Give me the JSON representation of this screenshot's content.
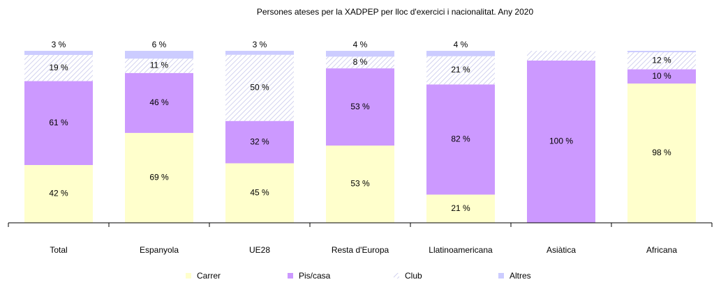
{
  "chart_data": {
    "type": "bar",
    "stacked": "percent",
    "title": "Persones ateses per la XADPEP per lloc d'exercici i nacionalitat. Any 2020",
    "categories": [
      "Total",
      "Espanyola",
      "UE28",
      "Resta d'Europa",
      "Llatinoamericana",
      "Asiàtica",
      "Africana"
    ],
    "series": [
      {
        "name": "Carrer",
        "color": "#ffffcc",
        "values": [
          42,
          69,
          45,
          53,
          21,
          0,
          98
        ],
        "value_labels": [
          "42 %",
          "69 %",
          "45 %",
          "53 %",
          "21 %",
          null,
          "98 %"
        ]
      },
      {
        "name": "Pis/casa",
        "color": "#cc99ff",
        "values": [
          61,
          46,
          32,
          53,
          82,
          100,
          10
        ],
        "value_labels": [
          "61 %",
          "46 %",
          "32 %",
          "53 %",
          "82 %",
          "100 %",
          "10 %"
        ]
      },
      {
        "name": "Club",
        "color": "#c4c4ea",
        "pattern": "hatch",
        "values": [
          19,
          11,
          50,
          8,
          21,
          6,
          12
        ],
        "value_labels": [
          "19 %",
          "11 %",
          "50 %",
          "8 %",
          "21 %",
          null,
          "12 %"
        ]
      },
      {
        "name": "Altres",
        "color": "#ccccff",
        "values": [
          3,
          6,
          3,
          4,
          4,
          0,
          1
        ],
        "value_labels": [
          "3 %",
          "6 %",
          "3 %",
          "4 %",
          "4 %",
          null,
          null
        ]
      }
    ],
    "legend": "bottom"
  }
}
